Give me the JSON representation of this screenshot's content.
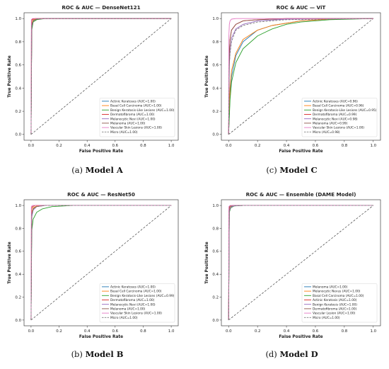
{
  "figure": {
    "captions": [
      {
        "label": "(a)",
        "name": "Model A"
      },
      {
        "label": "(c)",
        "name": "Model C"
      },
      {
        "label": "(b)",
        "name": "Model B"
      },
      {
        "label": "(d)",
        "name": "Model D"
      }
    ]
  },
  "chart_data": [
    {
      "type": "line",
      "title": "ROC & AUC — DenseNet121",
      "xlabel": "False Positive Rate",
      "ylabel": "True Positive Rate",
      "xlim": [
        0,
        1
      ],
      "ylim": [
        0,
        1
      ],
      "xticks": [
        "0.0",
        "0.2",
        "0.4",
        "0.6",
        "0.8",
        "1.0"
      ],
      "yticks": [
        "0.0",
        "0.2",
        "0.4",
        "0.6",
        "0.8",
        "1.0"
      ],
      "grid": false,
      "legend_position": "lower-right",
      "series": [
        {
          "name": "Actinic Keratoses (AUC=1.00)",
          "color": "#1f77b4",
          "x": [
            0,
            0.005,
            0.015,
            0.04,
            0.1,
            1
          ],
          "y": [
            0,
            0.95,
            0.985,
            0.997,
            1,
            1
          ]
        },
        {
          "name": "Basal Cell Carcinoma (AUC=1.00)",
          "color": "#ff7f0e",
          "x": [
            0,
            0.005,
            0.015,
            0.04,
            0.1,
            1
          ],
          "y": [
            0,
            0.96,
            0.99,
            0.998,
            1,
            1
          ]
        },
        {
          "name": "Benign Keratosis-Like Lesions (AUC=1.00)",
          "color": "#2ca02c",
          "x": [
            0,
            0.005,
            0.015,
            0.04,
            0.1,
            1
          ],
          "y": [
            0,
            0.9,
            0.97,
            0.99,
            1,
            1
          ]
        },
        {
          "name": "Dermatofibroma (AUC=1.00)",
          "color": "#d62728",
          "x": [
            0,
            0.003,
            0.01,
            0.03,
            1
          ],
          "y": [
            0,
            0.98,
            0.995,
            1,
            1
          ]
        },
        {
          "name": "Melanocytic Nevi (AUC=1.00)",
          "color": "#9467bd",
          "x": [
            0,
            0.005,
            0.015,
            0.04,
            0.1,
            1
          ],
          "y": [
            0,
            0.93,
            0.98,
            0.995,
            1,
            1
          ]
        },
        {
          "name": "Melanoma (AUC=1.00)",
          "color": "#8c564b",
          "x": [
            0,
            0.005,
            0.015,
            0.04,
            0.1,
            1
          ],
          "y": [
            0,
            0.94,
            0.98,
            0.995,
            1,
            1
          ]
        },
        {
          "name": "Vascular Skin Lesions (AUC=1.00)",
          "color": "#e377c2",
          "x": [
            0,
            0.002,
            0.01,
            1
          ],
          "y": [
            0,
            0.99,
            1,
            1
          ]
        },
        {
          "name": "Micro (AUC=1.00)",
          "color": "#7f7f7f",
          "dashed": true,
          "x": [
            0,
            0.005,
            0.015,
            0.04,
            0.1,
            1
          ],
          "y": [
            0,
            0.95,
            0.985,
            0.997,
            1,
            1
          ]
        }
      ],
      "diagonal": true
    },
    {
      "type": "line",
      "title": "ROC & AUC — ViT",
      "xlabel": "False Positive Rate",
      "ylabel": "True Positive Rate",
      "xlim": [
        0,
        1
      ],
      "ylim": [
        0,
        1
      ],
      "xticks": [
        "0.0",
        "0.2",
        "0.4",
        "0.6",
        "0.8",
        "1.0"
      ],
      "yticks": [
        "0.0",
        "0.2",
        "0.4",
        "0.6",
        "0.8",
        "1.0"
      ],
      "grid": false,
      "legend_position": "lower-right",
      "series": [
        {
          "name": "Actinic Keratoses (AUC=0.96)",
          "color": "#1f77b4",
          "x": [
            0,
            0.01,
            0.02,
            0.05,
            0.1,
            0.2,
            0.3,
            0.5,
            0.7,
            1
          ],
          "y": [
            0,
            0.35,
            0.5,
            0.68,
            0.8,
            0.9,
            0.94,
            0.98,
            0.995,
            1
          ]
        },
        {
          "name": "Basal Cell Carcinoma (AUC=0.96)",
          "color": "#ff7f0e",
          "x": [
            0,
            0.01,
            0.02,
            0.05,
            0.1,
            0.2,
            0.3,
            0.5,
            0.7,
            1
          ],
          "y": [
            0,
            0.4,
            0.55,
            0.7,
            0.82,
            0.9,
            0.94,
            0.98,
            0.995,
            1
          ]
        },
        {
          "name": "Benign Keratosis-Like Lesions (AUC=0.95)",
          "color": "#2ca02c",
          "x": [
            0,
            0.01,
            0.02,
            0.05,
            0.1,
            0.2,
            0.3,
            0.4,
            0.5,
            0.7,
            1
          ],
          "y": [
            0,
            0.3,
            0.45,
            0.62,
            0.74,
            0.85,
            0.91,
            0.95,
            0.97,
            0.99,
            1
          ]
        },
        {
          "name": "Dermatofibroma (AUC=0.99)",
          "color": "#d62728",
          "x": [
            0,
            0.005,
            0.01,
            0.02,
            0.05,
            0.1,
            0.2,
            0.4,
            1
          ],
          "y": [
            0,
            0.7,
            0.82,
            0.9,
            0.95,
            0.98,
            0.99,
            1,
            1
          ]
        },
        {
          "name": "Melanocytic Nevi (AUC=0.98)",
          "color": "#9467bd",
          "x": [
            0,
            0.005,
            0.01,
            0.02,
            0.05,
            0.1,
            0.2,
            0.4,
            1
          ],
          "y": [
            0,
            0.6,
            0.72,
            0.83,
            0.91,
            0.95,
            0.98,
            0.995,
            1
          ]
        },
        {
          "name": "Melanoma (AUC=0.99)",
          "color": "#8c564b",
          "x": [
            0,
            0.005,
            0.01,
            0.02,
            0.05,
            0.1,
            0.2,
            0.4,
            1
          ],
          "y": [
            0,
            0.72,
            0.82,
            0.9,
            0.95,
            0.98,
            0.99,
            1,
            1
          ]
        },
        {
          "name": "Vascular Skin Lesions (AUC=1.00)",
          "color": "#e377c2",
          "x": [
            0,
            0.002,
            0.005,
            0.01,
            0.02,
            0.05,
            1
          ],
          "y": [
            0,
            0.85,
            0.95,
            0.98,
            0.995,
            1,
            1
          ]
        },
        {
          "name": "Micro (AUC=0.98)",
          "color": "#7f7f7f",
          "dashed": true,
          "x": [
            0,
            0.005,
            0.01,
            0.02,
            0.05,
            0.1,
            0.2,
            0.4,
            1
          ],
          "y": [
            0,
            0.6,
            0.7,
            0.8,
            0.9,
            0.94,
            0.97,
            0.99,
            1
          ]
        }
      ],
      "diagonal": true
    },
    {
      "type": "line",
      "title": "ROC & AUC — ResNet50",
      "xlabel": "False Positive Rate",
      "ylabel": "True Positive Rate",
      "xlim": [
        0,
        1
      ],
      "ylim": [
        0,
        1
      ],
      "xticks": [
        "0.0",
        "0.2",
        "0.4",
        "0.6",
        "0.8",
        "1.0"
      ],
      "yticks": [
        "0.0",
        "0.2",
        "0.4",
        "0.6",
        "0.8",
        "1.0"
      ],
      "grid": false,
      "legend_position": "lower-right",
      "series": [
        {
          "name": "Actinic Keratoses (AUC=1.00)",
          "color": "#1f77b4",
          "x": [
            0,
            0.005,
            0.015,
            0.04,
            0.1,
            1
          ],
          "y": [
            0,
            0.93,
            0.98,
            0.995,
            1,
            1
          ]
        },
        {
          "name": "Basal Cell Carcinoma (AUC=1.00)",
          "color": "#ff7f0e",
          "x": [
            0,
            0.005,
            0.015,
            0.04,
            0.1,
            1
          ],
          "y": [
            0,
            0.94,
            0.98,
            0.995,
            1,
            1
          ]
        },
        {
          "name": "Benign Keratosis-Like Lesions (AUC=0.99)",
          "color": "#2ca02c",
          "x": [
            0,
            0.005,
            0.015,
            0.04,
            0.08,
            0.15,
            0.3,
            1
          ],
          "y": [
            0,
            0.78,
            0.88,
            0.94,
            0.97,
            0.99,
            1,
            1
          ]
        },
        {
          "name": "Dermatofibroma (AUC=1.00)",
          "color": "#d62728",
          "x": [
            0,
            0.003,
            0.01,
            0.03,
            1
          ],
          "y": [
            0,
            0.97,
            0.99,
            1,
            1
          ]
        },
        {
          "name": "Melanocytic Nevi (AUC=1.00)",
          "color": "#9467bd",
          "x": [
            0,
            0.005,
            0.015,
            0.04,
            0.1,
            1
          ],
          "y": [
            0,
            0.9,
            0.96,
            0.99,
            1,
            1
          ]
        },
        {
          "name": "Melanoma (AUC=1.00)",
          "color": "#8c564b",
          "x": [
            0,
            0.005,
            0.015,
            0.04,
            0.1,
            1
          ],
          "y": [
            0,
            0.92,
            0.97,
            0.99,
            1,
            1
          ]
        },
        {
          "name": "Vascular Skin Lesions (AUC=1.00)",
          "color": "#e377c2",
          "x": [
            0,
            0.002,
            0.01,
            1
          ],
          "y": [
            0,
            0.99,
            1,
            1
          ]
        },
        {
          "name": "Micro (AUC=1.00)",
          "color": "#7f7f7f",
          "dashed": true,
          "x": [
            0,
            0.005,
            0.015,
            0.04,
            0.1,
            1
          ],
          "y": [
            0,
            0.92,
            0.97,
            0.99,
            1,
            1
          ]
        }
      ],
      "diagonal": true
    },
    {
      "type": "line",
      "title": "ROC & AUC — Ensemble (DAME Model)",
      "xlabel": "False Positive Rate",
      "ylabel": "True Positive Rate",
      "xlim": [
        0,
        1
      ],
      "ylim": [
        0,
        1
      ],
      "xticks": [
        "0.0",
        "0.2",
        "0.4",
        "0.6",
        "0.8",
        "1.0"
      ],
      "yticks": [
        "0.0",
        "0.2",
        "0.4",
        "0.6",
        "0.8",
        "1.0"
      ],
      "grid": false,
      "legend_position": "lower-right",
      "series": [
        {
          "name": "Melanoma (AUC=1.00)",
          "color": "#1f77b4",
          "x": [
            0,
            0.005,
            0.015,
            0.04,
            0.1,
            1
          ],
          "y": [
            0,
            0.95,
            0.985,
            0.997,
            1,
            1
          ]
        },
        {
          "name": "Melanocytic Nevus (AUC=1.00)",
          "color": "#ff7f0e",
          "x": [
            0,
            0.005,
            0.015,
            0.04,
            0.1,
            1
          ],
          "y": [
            0,
            0.96,
            0.99,
            0.998,
            1,
            1
          ]
        },
        {
          "name": "Basal Cell Carcinoma (AUC=1.00)",
          "color": "#2ca02c",
          "x": [
            0,
            0.005,
            0.015,
            0.04,
            0.1,
            1
          ],
          "y": [
            0,
            0.94,
            0.98,
            0.996,
            1,
            1
          ]
        },
        {
          "name": "Actinic Keratosis (AUC=1.00)",
          "color": "#d62728",
          "x": [
            0,
            0.003,
            0.01,
            0.03,
            1
          ],
          "y": [
            0,
            0.97,
            0.995,
            1,
            1
          ]
        },
        {
          "name": "Benign Keratosis (AUC=1.00)",
          "color": "#9467bd",
          "x": [
            0,
            0.005,
            0.015,
            0.04,
            0.1,
            1
          ],
          "y": [
            0,
            0.95,
            0.985,
            0.997,
            1,
            1
          ]
        },
        {
          "name": "Dermatofibroma (AUC=1.00)",
          "color": "#8c564b",
          "x": [
            0,
            0.003,
            0.01,
            0.03,
            1
          ],
          "y": [
            0,
            0.98,
            0.995,
            1,
            1
          ]
        },
        {
          "name": "Vascular Lesion (AUC=1.00)",
          "color": "#e377c2",
          "x": [
            0,
            0.002,
            0.01,
            1
          ],
          "y": [
            0,
            0.99,
            1,
            1
          ]
        },
        {
          "name": "Micro (AUC=1.00)",
          "color": "#7f7f7f",
          "dashed": true,
          "x": [
            0,
            0.005,
            0.015,
            0.04,
            0.1,
            1
          ],
          "y": [
            0,
            0.96,
            0.99,
            0.998,
            1,
            1
          ]
        }
      ],
      "diagonal": true
    }
  ]
}
